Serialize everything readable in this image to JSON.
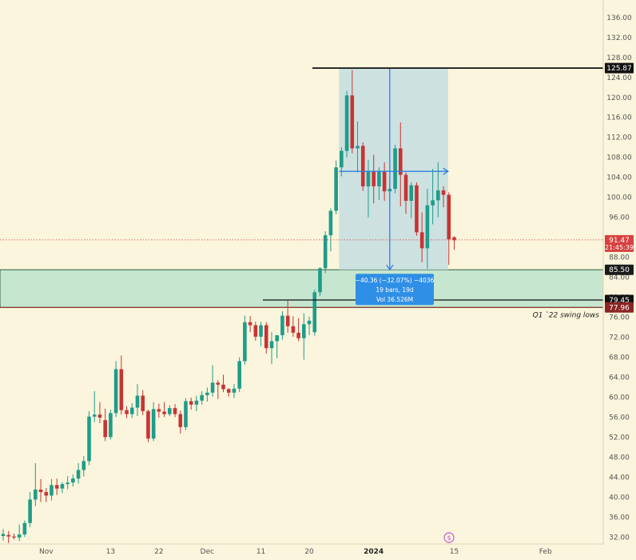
{
  "chart_data": {
    "type": "candlestick",
    "x_axis": {
      "labels": [
        {
          "text": "Nov",
          "day": 8
        },
        {
          "text": "13",
          "day": 20
        },
        {
          "text": "22",
          "day": 29
        },
        {
          "text": "Dec",
          "day": 38
        },
        {
          "text": "11",
          "day": 48
        },
        {
          "text": "20",
          "day": 57
        },
        {
          "text": "2024",
          "day": 69,
          "bold": true
        },
        {
          "text": "15",
          "day": 84
        },
        {
          "text": "Feb",
          "day": 101
        }
      ]
    },
    "y_axis": {
      "ticks": [
        32,
        36,
        40,
        44,
        48,
        52,
        56,
        60,
        64,
        68,
        72,
        76,
        80,
        84,
        88,
        96,
        100,
        104,
        108,
        112,
        116,
        120,
        124,
        128,
        132,
        136
      ],
      "range": [
        30.6,
        139.5
      ]
    },
    "colors": {
      "background": "#faf5dc",
      "up": "#1f9c8a",
      "down": "#c93333",
      "axis_text": "#555555",
      "measure_fill": "#c3dde0",
      "measure_arrow": "#2f7fdd",
      "zone_fill": "#c6e6cf",
      "current_price": "#d84040"
    },
    "candles": [
      {
        "o": 32.2,
        "h": 33.6,
        "l": 31.3,
        "c": 32.6
      },
      {
        "o": 32.4,
        "h": 33.2,
        "l": 30.8,
        "c": 32.1
      },
      {
        "o": 32.1,
        "h": 32.7,
        "l": 31.5,
        "c": 31.9
      },
      {
        "o": 31.9,
        "h": 34.5,
        "l": 31.2,
        "c": 32.5
      },
      {
        "o": 32.5,
        "h": 35.3,
        "l": 32.0,
        "c": 34.8
      },
      {
        "o": 34.8,
        "h": 41.0,
        "l": 34.0,
        "c": 39.5
      },
      {
        "o": 39.5,
        "h": 46.8,
        "l": 38.2,
        "c": 41.5
      },
      {
        "o": 41.5,
        "h": 43.6,
        "l": 39.0,
        "c": 41.0
      },
      {
        "o": 41.0,
        "h": 41.8,
        "l": 39.0,
        "c": 40.3
      },
      {
        "o": 40.3,
        "h": 43.6,
        "l": 39.3,
        "c": 42.4
      },
      {
        "o": 42.4,
        "h": 43.7,
        "l": 40.4,
        "c": 41.7
      },
      {
        "o": 41.7,
        "h": 43.0,
        "l": 40.8,
        "c": 42.6
      },
      {
        "o": 42.6,
        "h": 44.2,
        "l": 41.6,
        "c": 42.9
      },
      {
        "o": 42.9,
        "h": 44.5,
        "l": 42.1,
        "c": 43.7
      },
      {
        "o": 43.7,
        "h": 46.8,
        "l": 42.7,
        "c": 45.4
      },
      {
        "o": 45.4,
        "h": 48.2,
        "l": 44.1,
        "c": 47.2
      },
      {
        "o": 47.2,
        "h": 57.2,
        "l": 46.4,
        "c": 56.1
      },
      {
        "o": 56.1,
        "h": 61.2,
        "l": 55.0,
        "c": 56.5
      },
      {
        "o": 56.5,
        "h": 59.0,
        "l": 54.8,
        "c": 55.9
      },
      {
        "o": 55.4,
        "h": 57.7,
        "l": 51.2,
        "c": 52.0
      },
      {
        "o": 52.0,
        "h": 57.5,
        "l": 51.5,
        "c": 56.8
      },
      {
        "o": 56.8,
        "h": 67.2,
        "l": 56.0,
        "c": 65.6
      },
      {
        "o": 65.6,
        "h": 68.3,
        "l": 56.5,
        "c": 57.4
      },
      {
        "o": 57.4,
        "h": 58.2,
        "l": 55.8,
        "c": 56.6
      },
      {
        "o": 56.6,
        "h": 58.8,
        "l": 55.8,
        "c": 57.9
      },
      {
        "o": 57.9,
        "h": 62.6,
        "l": 56.2,
        "c": 60.3
      },
      {
        "o": 60.3,
        "h": 61.4,
        "l": 56.4,
        "c": 57.2
      },
      {
        "o": 57.2,
        "h": 57.5,
        "l": 51.0,
        "c": 51.7
      },
      {
        "o": 51.7,
        "h": 59.0,
        "l": 51.2,
        "c": 57.6
      },
      {
        "o": 57.6,
        "h": 58.7,
        "l": 55.9,
        "c": 57.1
      },
      {
        "o": 57.1,
        "h": 59.0,
        "l": 56.0,
        "c": 56.6
      },
      {
        "o": 56.6,
        "h": 58.4,
        "l": 56.2,
        "c": 57.8
      },
      {
        "o": 57.8,
        "h": 58.6,
        "l": 56.0,
        "c": 56.6
      },
      {
        "o": 56.6,
        "h": 57.3,
        "l": 52.7,
        "c": 54.0
      },
      {
        "o": 54.0,
        "h": 59.8,
        "l": 53.4,
        "c": 59.2
      },
      {
        "o": 59.2,
        "h": 59.9,
        "l": 57.5,
        "c": 58.5
      },
      {
        "o": 58.5,
        "h": 60.3,
        "l": 57.2,
        "c": 59.3
      },
      {
        "o": 59.3,
        "h": 61.2,
        "l": 58.5,
        "c": 60.4
      },
      {
        "o": 60.4,
        "h": 61.9,
        "l": 59.1,
        "c": 60.9
      },
      {
        "o": 60.9,
        "h": 66.4,
        "l": 60.1,
        "c": 62.9
      },
      {
        "o": 62.9,
        "h": 63.4,
        "l": 59.6,
        "c": 62.5
      },
      {
        "o": 62.5,
        "h": 64.5,
        "l": 61.0,
        "c": 61.6
      },
      {
        "o": 61.6,
        "h": 61.8,
        "l": 60.1,
        "c": 60.9
      },
      {
        "o": 60.9,
        "h": 62.6,
        "l": 59.8,
        "c": 61.7
      },
      {
        "o": 61.7,
        "h": 68.0,
        "l": 61.0,
        "c": 67.2
      },
      {
        "o": 67.2,
        "h": 76.3,
        "l": 66.5,
        "c": 75.0
      },
      {
        "o": 75.0,
        "h": 76.2,
        "l": 73.0,
        "c": 74.4
      },
      {
        "o": 74.4,
        "h": 75.1,
        "l": 71.3,
        "c": 72.1
      },
      {
        "o": 72.1,
        "h": 75.1,
        "l": 70.2,
        "c": 74.4
      },
      {
        "o": 74.4,
        "h": 75.0,
        "l": 68.7,
        "c": 69.8
      },
      {
        "o": 69.8,
        "h": 73.0,
        "l": 66.6,
        "c": 71.2
      },
      {
        "o": 71.2,
        "h": 72.2,
        "l": 67.8,
        "c": 72.4
      },
      {
        "o": 72.4,
        "h": 77.2,
        "l": 71.5,
        "c": 76.3
      },
      {
        "o": 76.3,
        "h": 79.3,
        "l": 72.9,
        "c": 74.2
      },
      {
        "o": 74.2,
        "h": 76.2,
        "l": 72.1,
        "c": 72.9
      },
      {
        "o": 72.9,
        "h": 75.8,
        "l": 71.2,
        "c": 71.8
      },
      {
        "o": 71.8,
        "h": 76.8,
        "l": 67.5,
        "c": 74.6
      },
      {
        "o": 74.6,
        "h": 76.1,
        "l": 72.4,
        "c": 75.3
      },
      {
        "o": 73.0,
        "h": 81.5,
        "l": 72.3,
        "c": 81.0
      },
      {
        "o": 81.0,
        "h": 86.0,
        "l": 80.2,
        "c": 85.8
      },
      {
        "o": 85.8,
        "h": 93.2,
        "l": 84.8,
        "c": 92.4
      },
      {
        "o": 92.4,
        "h": 97.8,
        "l": 89.2,
        "c": 97.3
      },
      {
        "o": 97.3,
        "h": 107.4,
        "l": 96.6,
        "c": 106.0
      },
      {
        "o": 106.0,
        "h": 110.0,
        "l": 104.2,
        "c": 109.3
      },
      {
        "o": 109.3,
        "h": 121.3,
        "l": 108.0,
        "c": 120.4
      },
      {
        "o": 120.4,
        "h": 125.5,
        "l": 108.8,
        "c": 109.8
      },
      {
        "o": 109.8,
        "h": 115.2,
        "l": 105.0,
        "c": 110.3
      },
      {
        "o": 110.3,
        "h": 111.0,
        "l": 101.3,
        "c": 102.2
      },
      {
        "o": 102.2,
        "h": 107.5,
        "l": 96.0,
        "c": 105.2
      },
      {
        "o": 105.2,
        "h": 108.5,
        "l": 98.8,
        "c": 102.2
      },
      {
        "o": 102.2,
        "h": 106.0,
        "l": 99.5,
        "c": 105.3
      },
      {
        "o": 105.3,
        "h": 107.0,
        "l": 99.3,
        "c": 101.2
      },
      {
        "o": 101.2,
        "h": 103.5,
        "l": 98.5,
        "c": 101.7
      },
      {
        "o": 101.7,
        "h": 110.5,
        "l": 100.8,
        "c": 109.8
      },
      {
        "o": 109.8,
        "h": 115.0,
        "l": 98.2,
        "c": 104.5
      },
      {
        "o": 104.5,
        "h": 105.0,
        "l": 96.7,
        "c": 99.3
      },
      {
        "o": 99.3,
        "h": 103.0,
        "l": 95.8,
        "c": 102.4
      },
      {
        "o": 102.4,
        "h": 103.0,
        "l": 92.3,
        "c": 93.0
      },
      {
        "o": 93.0,
        "h": 97.0,
        "l": 87.0,
        "c": 89.8
      },
      {
        "o": 89.8,
        "h": 101.7,
        "l": 85.7,
        "c": 98.4
      },
      {
        "o": 98.4,
        "h": 105.7,
        "l": 94.6,
        "c": 99.4
      },
      {
        "o": 99.4,
        "h": 107.0,
        "l": 96.0,
        "c": 101.4
      },
      {
        "o": 101.4,
        "h": 102.2,
        "l": 98.0,
        "c": 100.5
      },
      {
        "o": 100.5,
        "h": 101.0,
        "l": 86.5,
        "c": 91.6
      },
      {
        "o": 92.0,
        "h": 92.2,
        "l": 89.5,
        "c": 91.4
      }
    ],
    "levels": {
      "top_line": {
        "label": "125.87",
        "value": 125.87
      },
      "zone_top": {
        "label": "85.50",
        "value": 85.5
      },
      "mid_line": {
        "label": "79.45",
        "value": 79.45
      },
      "zone_bottom": {
        "label": "77.96",
        "value": 77.96
      },
      "current": {
        "label": "91.47",
        "countdown": "21:45:39",
        "value": 91.47
      }
    },
    "measure_box": {
      "from_price": 125.87,
      "to_price": 85.5,
      "mid_price": 105.2,
      "line1": "−40.36 (−32.07%) −4036",
      "line2": "19 bars, 19d",
      "line3": "Vol 36.526M"
    },
    "annotation": "Q1 `22 swing lows"
  }
}
